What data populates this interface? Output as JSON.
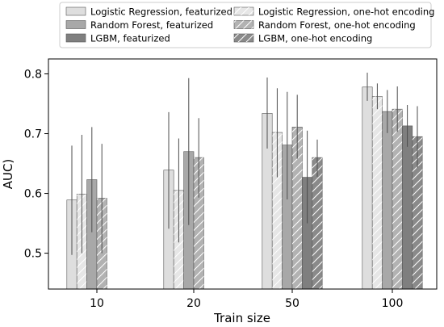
{
  "chart_data": {
    "type": "bar",
    "title": "",
    "xlabel": "Train size",
    "ylabel": "AUC)",
    "ylim": [
      0.44,
      0.825
    ],
    "yticks": [
      0.5,
      0.6,
      0.7,
      0.8
    ],
    "categories": [
      "10",
      "20",
      "50",
      "100"
    ],
    "legend_position": "top",
    "error_bars": true,
    "series": [
      {
        "name": "Logistic Regression, featurized",
        "fill": "#dedede",
        "hatch": false,
        "values": [
          0.589,
          0.639,
          0.734,
          0.778
        ],
        "error_low": [
          0.497,
          0.541,
          0.675,
          0.755
        ],
        "error_high": [
          0.68,
          0.736,
          0.794,
          0.802
        ]
      },
      {
        "name": "Logistic Regression, one-hot encoding",
        "fill": "#e6e6e6",
        "hatch": true,
        "values": [
          0.599,
          0.605,
          0.702,
          0.762
        ],
        "error_low": [
          0.5,
          0.518,
          0.627,
          0.741
        ],
        "error_high": [
          0.698,
          0.692,
          0.776,
          0.784
        ]
      },
      {
        "name": "Random Forest, featurized",
        "fill": "#a8a8a8",
        "hatch": false,
        "values": [
          0.623,
          0.67,
          0.681,
          0.737
        ],
        "error_low": [
          0.535,
          0.547,
          0.59,
          0.701
        ],
        "error_high": [
          0.711,
          0.793,
          0.77,
          0.773
        ]
      },
      {
        "name": "Random Forest, one-hot encoding",
        "fill": "#b2b2b2",
        "hatch": true,
        "values": [
          0.592,
          0.66,
          0.711,
          0.741
        ],
        "error_low": [
          0.5,
          0.593,
          0.658,
          0.703
        ],
        "error_high": [
          0.683,
          0.726,
          0.765,
          0.779
        ]
      },
      {
        "name": "LGBM, featurized",
        "fill": "#7f7f7f",
        "hatch": false,
        "values": [
          null,
          null,
          0.627,
          0.713
        ],
        "error_low": [
          null,
          null,
          0.55,
          0.678
        ],
        "error_high": [
          null,
          null,
          0.705,
          0.748
        ]
      },
      {
        "name": "LGBM, one-hot encoding",
        "fill": "#8a8a8a",
        "hatch": true,
        "values": [
          null,
          null,
          0.66,
          0.695
        ],
        "error_low": [
          null,
          null,
          0.628,
          0.643
        ],
        "error_high": [
          null,
          null,
          0.69,
          0.746
        ]
      }
    ]
  }
}
